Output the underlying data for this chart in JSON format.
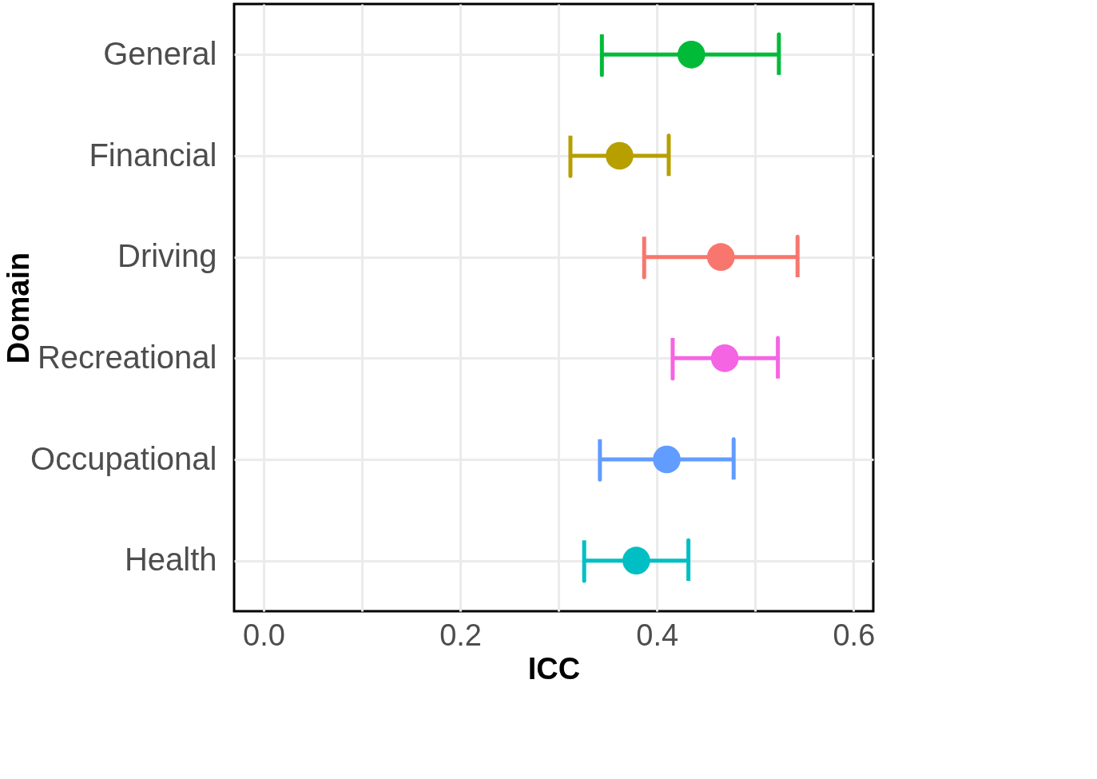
{
  "chart_data": {
    "type": "scatter",
    "orientation": "horizontal",
    "xlabel": "ICC",
    "ylabel": "Domain",
    "categories": [
      "General",
      "Financial",
      "Driving",
      "Recreational",
      "Occupational",
      "Health"
    ],
    "values": [
      0.435,
      0.362,
      0.465,
      0.469,
      0.41,
      0.379
    ],
    "errors": [
      [
        0.344,
        0.524
      ],
      [
        0.312,
        0.412
      ],
      [
        0.387,
        0.543
      ],
      [
        0.416,
        0.523
      ],
      [
        0.342,
        0.478
      ],
      [
        0.326,
        0.432
      ]
    ],
    "colors": [
      "#00ba38",
      "#b79f00",
      "#f8766d",
      "#f564e3",
      "#619cff",
      "#00bfc4"
    ],
    "xlim": [
      -0.03,
      0.62
    ],
    "xticks": [
      {
        "value": 0,
        "label": "0.0"
      },
      {
        "value": 0.1,
        "label": null
      },
      {
        "value": 0.2,
        "label": "0.2"
      },
      {
        "value": 0.3,
        "label": null
      },
      {
        "value": 0.4,
        "label": "0.4"
      },
      {
        "value": 0.5,
        "label": null
      },
      {
        "value": 0.6,
        "label": "0.6"
      }
    ],
    "grid": true,
    "legend": false,
    "marker": "circle"
  }
}
